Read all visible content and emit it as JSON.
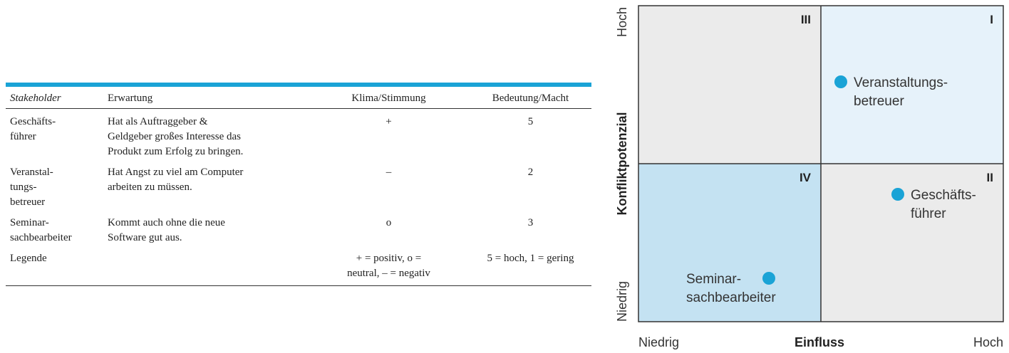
{
  "table": {
    "accent_color": "#1aa3d6",
    "headers": [
      "Stakeholder",
      "Erwartung",
      "Klima/Stimmung",
      "Bedeutung/Macht"
    ],
    "rows": [
      {
        "stakeholder": [
          "Geschäfts-",
          "führer"
        ],
        "erwartung": [
          "Hat als Auftraggeber &",
          "Geldgeber großes Interesse das",
          "Produkt zum Erfolg zu bringen."
        ],
        "klima": [
          "+"
        ],
        "macht": [
          "5"
        ]
      },
      {
        "stakeholder": [
          "Veranstal-",
          "tungs-",
          "betreuer"
        ],
        "erwartung": [
          "Hat Angst zu viel am Computer",
          "arbeiten zu müssen."
        ],
        "klima": [
          "–"
        ],
        "macht": [
          "2"
        ]
      },
      {
        "stakeholder": [
          "Seminar-",
          "sachbearbeiter"
        ],
        "erwartung": [
          "Kommt auch ohne die neue",
          "Software gut aus."
        ],
        "klima": [
          "o"
        ],
        "macht": [
          "3"
        ]
      },
      {
        "stakeholder": [
          "Legende"
        ],
        "erwartung": [],
        "klima": [
          "+ = positiv, o =",
          "neutral, – = negativ"
        ],
        "macht": [
          "5 = hoch, 1 = gering"
        ]
      }
    ]
  },
  "matrix": {
    "y_axis_label": "Konfliktpotenzial",
    "y_high": "Hoch",
    "y_low": "Niedrig",
    "x_axis_label": "Einfluss",
    "x_low": "Niedrig",
    "x_high": "Hoch",
    "quadrants": {
      "III": {
        "label": "III",
        "color": "#ebebeb"
      },
      "I": {
        "label": "I",
        "color": "#e6f2fa"
      },
      "IV": {
        "label": "IV",
        "color": "#c4e2f2"
      },
      "II": {
        "label": "II",
        "color": "#ebebeb"
      }
    },
    "dot_color": "#1aa3d6",
    "points": [
      {
        "lines": [
          "Veranstaltungs-",
          "betreuer"
        ],
        "quadrant": "I"
      },
      {
        "lines": [
          "Geschäfts-",
          "führer"
        ],
        "quadrant": "II"
      },
      {
        "lines": [
          "Seminar-",
          "sachbearbeiter"
        ],
        "quadrant": "IV"
      }
    ]
  }
}
